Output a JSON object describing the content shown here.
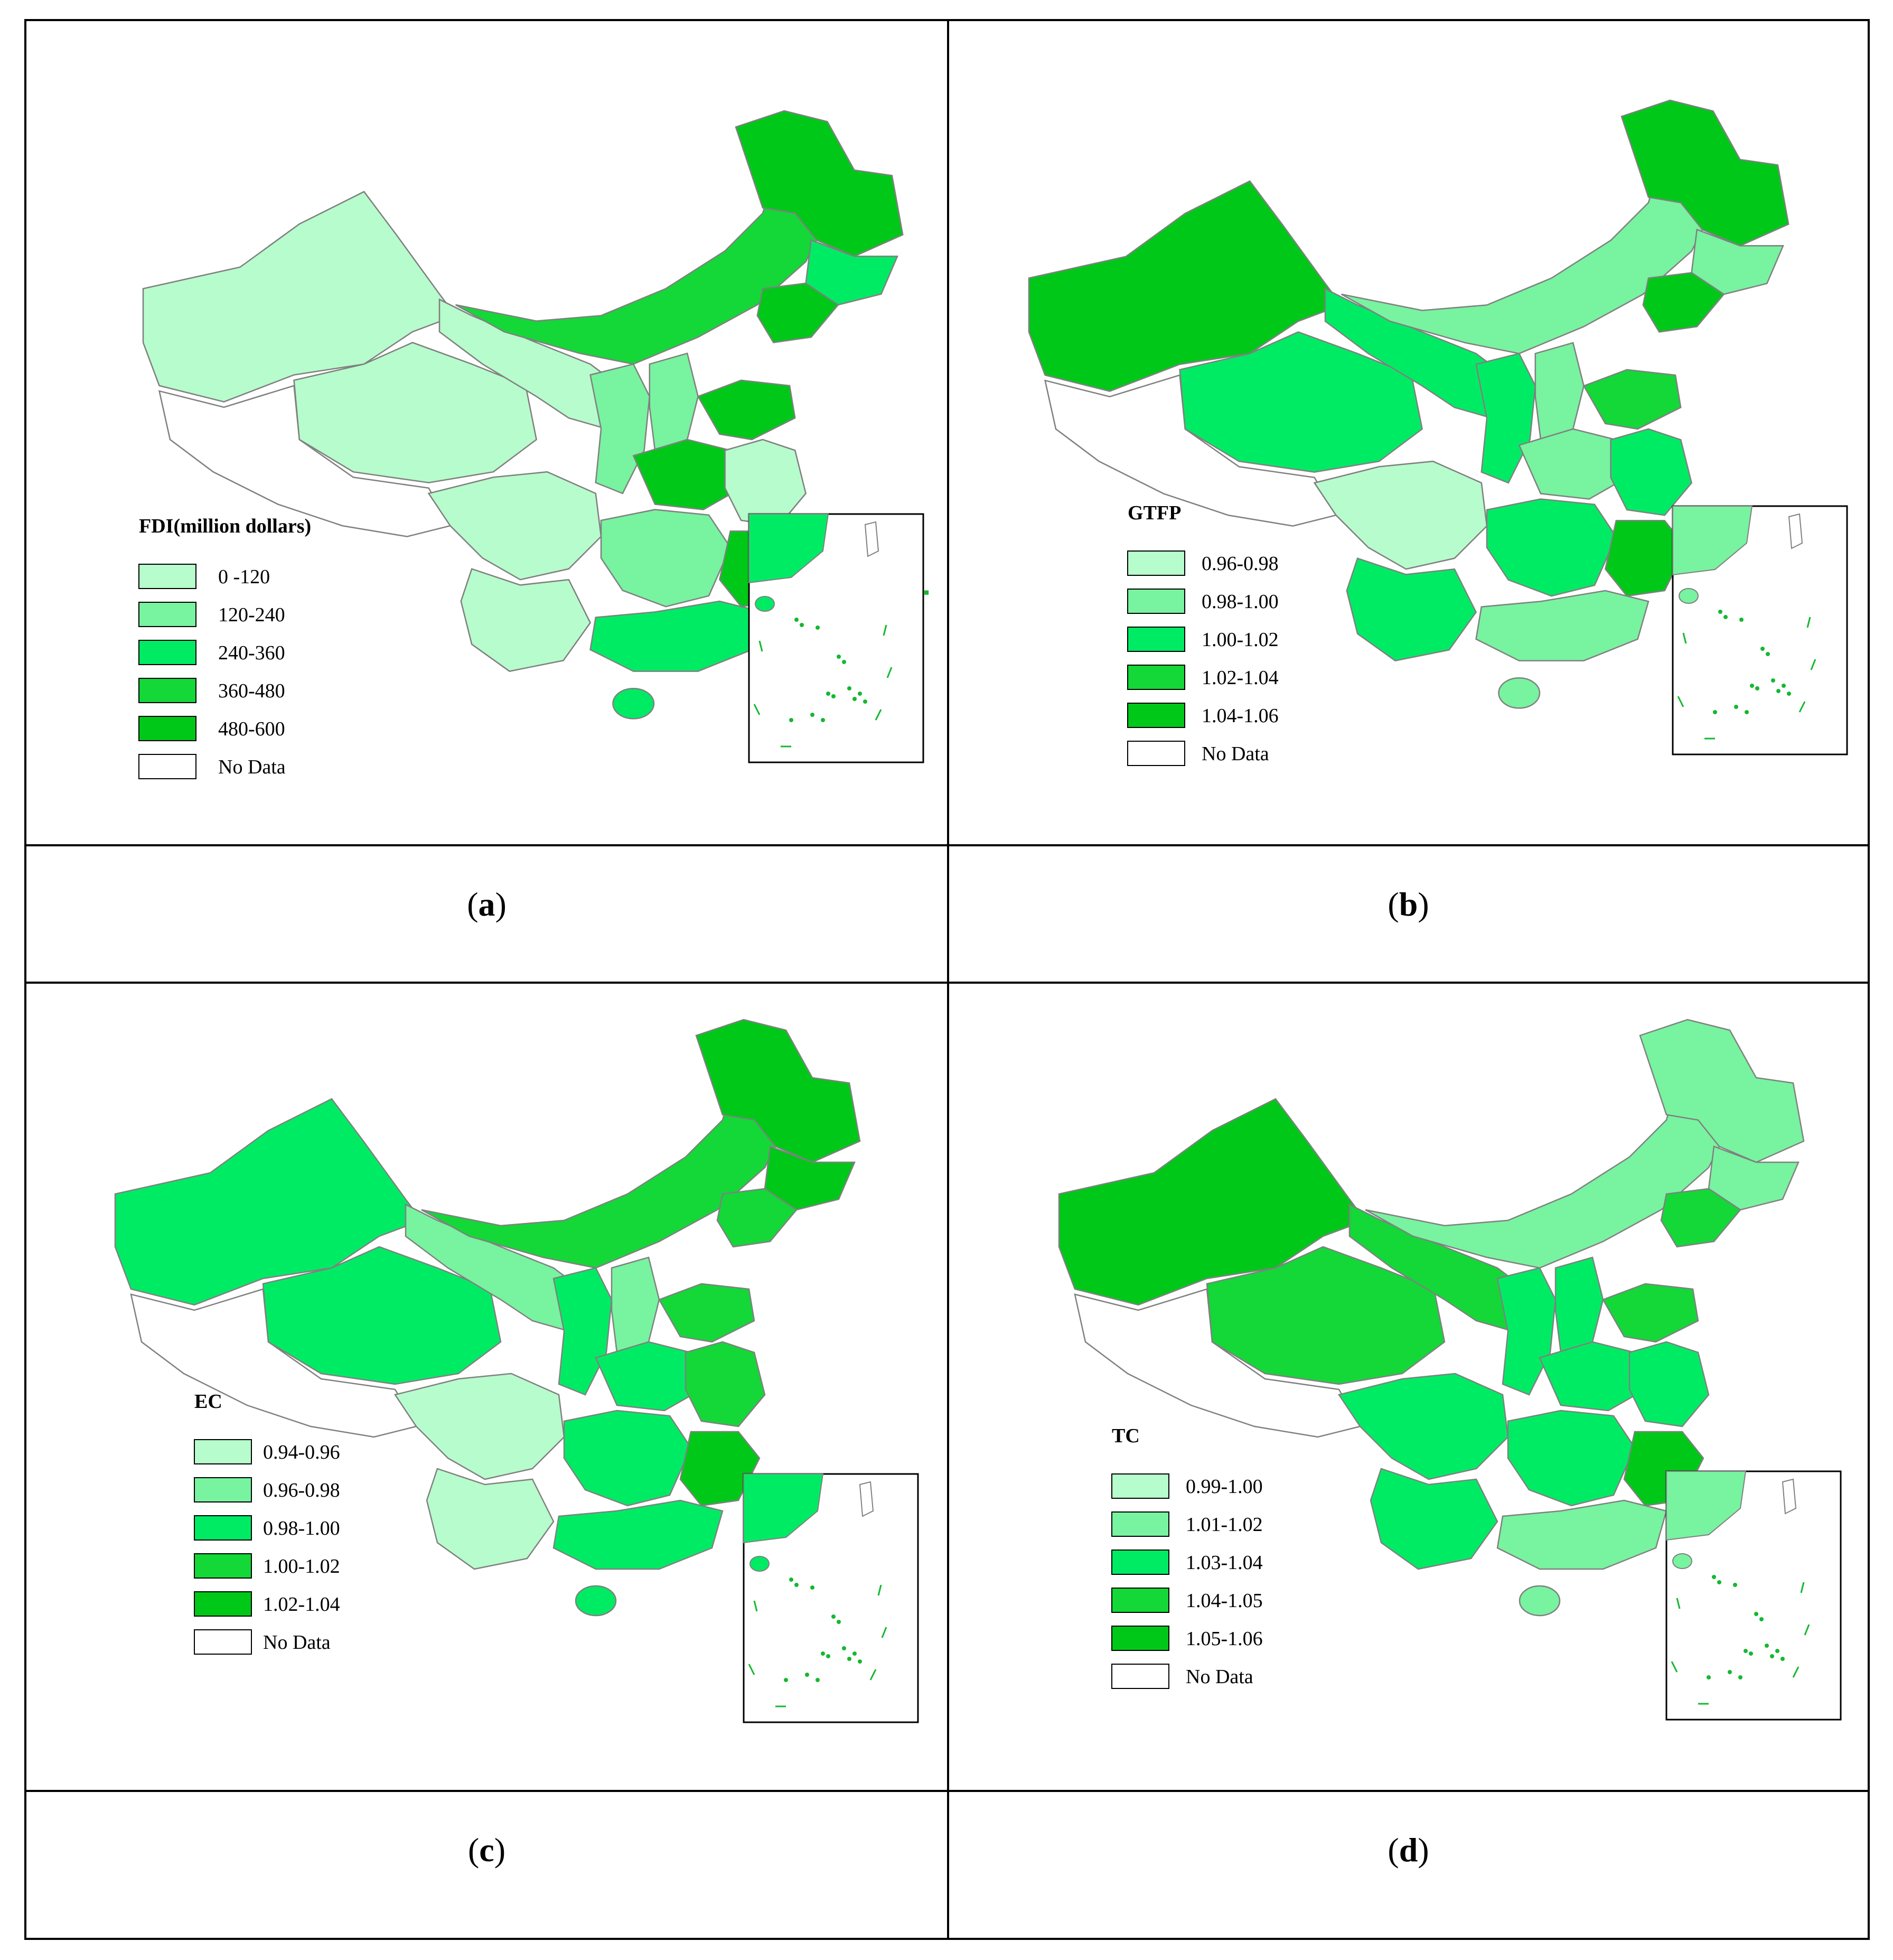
{
  "panels": [
    {
      "id": "a",
      "caption_letter": "a",
      "legend_title": "FDI(million dollars)",
      "legend": [
        {
          "label": "0 -120",
          "color": "#b7fccc"
        },
        {
          "label": "120-240",
          "color": "#78f3a0"
        },
        {
          "label": "240-360",
          "color": "#00eb64"
        },
        {
          "label": "360-480",
          "color": "#14d738"
        },
        {
          "label": "480-600",
          "color": "#00c818"
        },
        {
          "label": "No Data",
          "color": "#ffffff"
        }
      ],
      "map_legend_colors": [
        "#b7fccc",
        "#b7fccc",
        "#b7fccc",
        "#14d738",
        "#00c818",
        "#00eb64",
        "#00c818",
        "#78f3a0",
        "#b7fccc",
        "#78f3a0",
        "#00c818",
        "#00c818",
        "#b7fccc",
        "#78f3a0",
        "#00c818",
        "#b7fccc",
        "#00eb64"
      ]
    },
    {
      "id": "b",
      "caption_letter": "b",
      "legend_title": "GTFP",
      "legend": [
        {
          "label": "0.96-0.98",
          "color": "#b7fccc"
        },
        {
          "label": "0.98-1.00",
          "color": "#78f3a0"
        },
        {
          "label": "1.00-1.02",
          "color": "#00eb64"
        },
        {
          "label": "1.02-1.04",
          "color": "#14d738"
        },
        {
          "label": "1.04-1.06",
          "color": "#00c818"
        },
        {
          "label": "No Data",
          "color": "#ffffff"
        }
      ],
      "map_legend_colors": [
        "#00c818",
        "#00eb64",
        "#00eb64",
        "#78f3a0",
        "#00c818",
        "#78f3a0",
        "#00c818",
        "#00eb64",
        "#b7fccc",
        "#78f3a0",
        "#78f3a0",
        "#14d738",
        "#00eb64",
        "#00eb64",
        "#00c818",
        "#00eb64",
        "#78f3a0"
      ]
    },
    {
      "id": "c",
      "caption_letter": "c",
      "legend_title": "EC",
      "legend": [
        {
          "label": "0.94-0.96",
          "color": "#b7fccc"
        },
        {
          "label": "0.96-0.98",
          "color": "#78f3a0"
        },
        {
          "label": "0.98-1.00",
          "color": "#00eb64"
        },
        {
          "label": "1.00-1.02",
          "color": "#14d738"
        },
        {
          "label": "1.02-1.04",
          "color": "#00c818"
        },
        {
          "label": "No Data",
          "color": "#ffffff"
        }
      ],
      "map_legend_colors": [
        "#00eb64",
        "#00eb64",
        "#78f3a0",
        "#14d738",
        "#00c818",
        "#00c818",
        "#14d738",
        "#00eb64",
        "#b7fccc",
        "#78f3a0",
        "#00eb64",
        "#14d738",
        "#14d738",
        "#00eb64",
        "#00c818",
        "#b7fccc",
        "#00eb64"
      ]
    },
    {
      "id": "d",
      "caption_letter": "d",
      "legend_title": "TC",
      "legend": [
        {
          "label": "0.99-1.00",
          "color": "#b7fccc"
        },
        {
          "label": "1.01-1.02",
          "color": "#78f3a0"
        },
        {
          "label": "1.03-1.04",
          "color": "#00eb64"
        },
        {
          "label": "1.04-1.05",
          "color": "#14d738"
        },
        {
          "label": "1.05-1.06",
          "color": "#00c818"
        },
        {
          "label": "No Data",
          "color": "#ffffff"
        }
      ],
      "map_legend_colors": [
        "#00c818",
        "#14d738",
        "#14d738",
        "#78f3a0",
        "#78f3a0",
        "#78f3a0",
        "#14d738",
        "#00eb64",
        "#00eb64",
        "#00eb64",
        "#00eb64",
        "#14d738",
        "#00eb64",
        "#00eb64",
        "#00c818",
        "#00eb64",
        "#78f3a0"
      ]
    }
  ]
}
